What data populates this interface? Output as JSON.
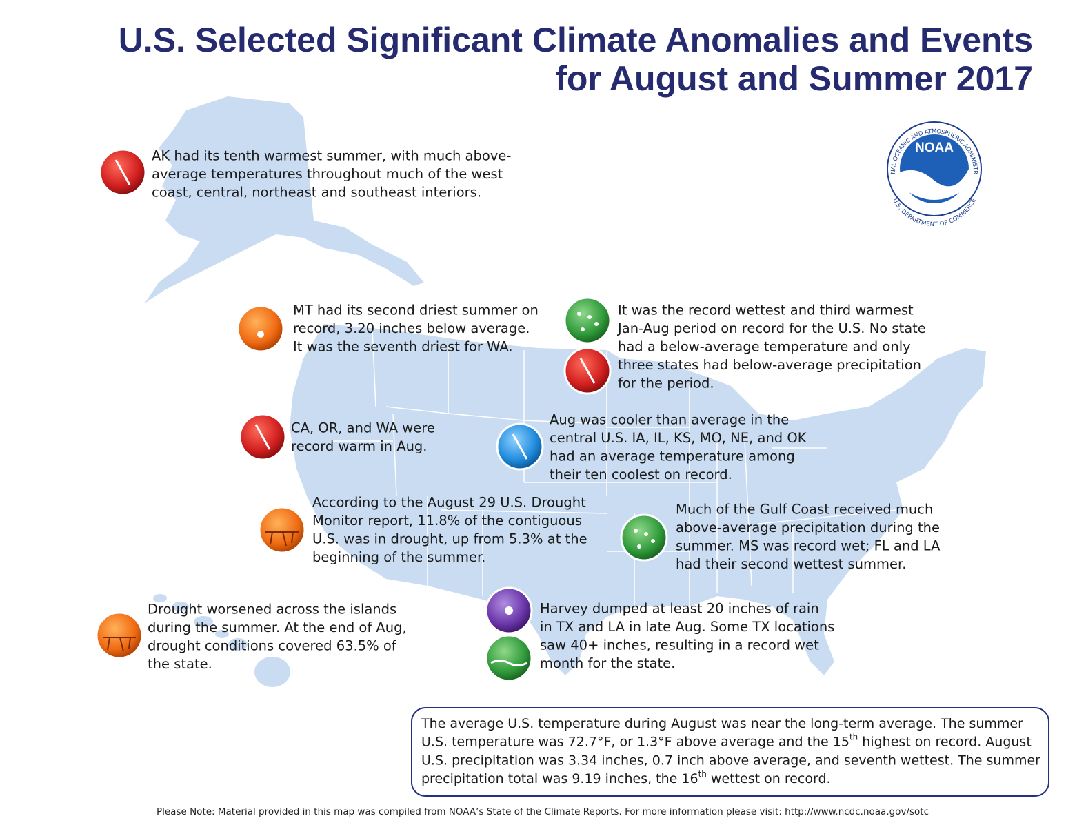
{
  "header": {
    "title_line1": "U.S. Selected Significant Climate Anomalies and Events",
    "title_line2": "for August and Summer 2017"
  },
  "logo": {
    "name": "NOAA",
    "ring_top": "NATIONAL OCEANIC AND ATMOSPHERIC ADMINISTRATION",
    "ring_bottom": "U.S. DEPARTMENT OF COMMERCE"
  },
  "events": [
    {
      "lines": [
        "AK had its tenth warmest summer, with much above-",
        "average temperatures throughout much of the west",
        "coast, central, northeast and southeast interiors."
      ]
    },
    {
      "lines": [
        "MT had its second driest summer on",
        "record, 3.20 inches below average.",
        "It was the seventh driest for WA."
      ]
    },
    {
      "lines": [
        "It was the record wettest and third warmest",
        "Jan-Aug period on record for the U.S. No state",
        "had a below-average temperature and only",
        "three states had below-average precipitation",
        "for the period."
      ]
    },
    {
      "lines": [
        "CA, OR, and WA were",
        "record warm in Aug."
      ]
    },
    {
      "lines": [
        "Aug was cooler than average in the",
        "central U.S. IA, IL, KS, MO, NE, and OK",
        "had an average temperature among",
        "their ten coolest on record."
      ]
    },
    {
      "lines": [
        "According to the August 29 U.S. Drought",
        "Monitor report, 11.8% of the contiguous",
        "U.S. was in drought, up from 5.3% at the",
        "beginning of the summer."
      ]
    },
    {
      "lines": [
        "Much of the Gulf Coast received much",
        "above-average precipitation during the",
        "summer. MS was record wet; FL and LA",
        "had their second wettest summer."
      ]
    },
    {
      "lines": [
        "Drought worsened across the islands",
        "during the summer. At the end of Aug,",
        "drought conditions covered 63.5% of",
        "the state."
      ]
    },
    {
      "lines": [
        "Harvey dumped at least 20 inches of rain",
        "in TX and LA in late Aug. Some TX locations",
        "saw 40+ inches, resulting in a record wet",
        "month for the state."
      ]
    }
  ],
  "summary": {
    "lines": [
      [
        {
          "text": "The average U.S. temperature during August was near the long-term average. The summer"
        }
      ],
      [
        {
          "text": "U.S. temperature was 72.7°F, or 1.3°F above average and the 15"
        },
        {
          "text": "th",
          "sup": true
        },
        {
          "text": " highest on record. August"
        }
      ],
      [
        {
          "text": "U.S. precipitation was 3.34 inches, 0.7 inch above average, and seventh wettest. The summer"
        }
      ],
      [
        {
          "text": "precipitation total was 9.19 inches, the 16"
        },
        {
          "text": "th",
          "sup": true
        },
        {
          "text": " wettest on record."
        }
      ]
    ]
  },
  "footer": "Please Note: Material provided in this map was compiled from NOAA’s State of the Climate Reports. For more information please visit: http://www.ncdc.noaa.gov/sotc"
}
